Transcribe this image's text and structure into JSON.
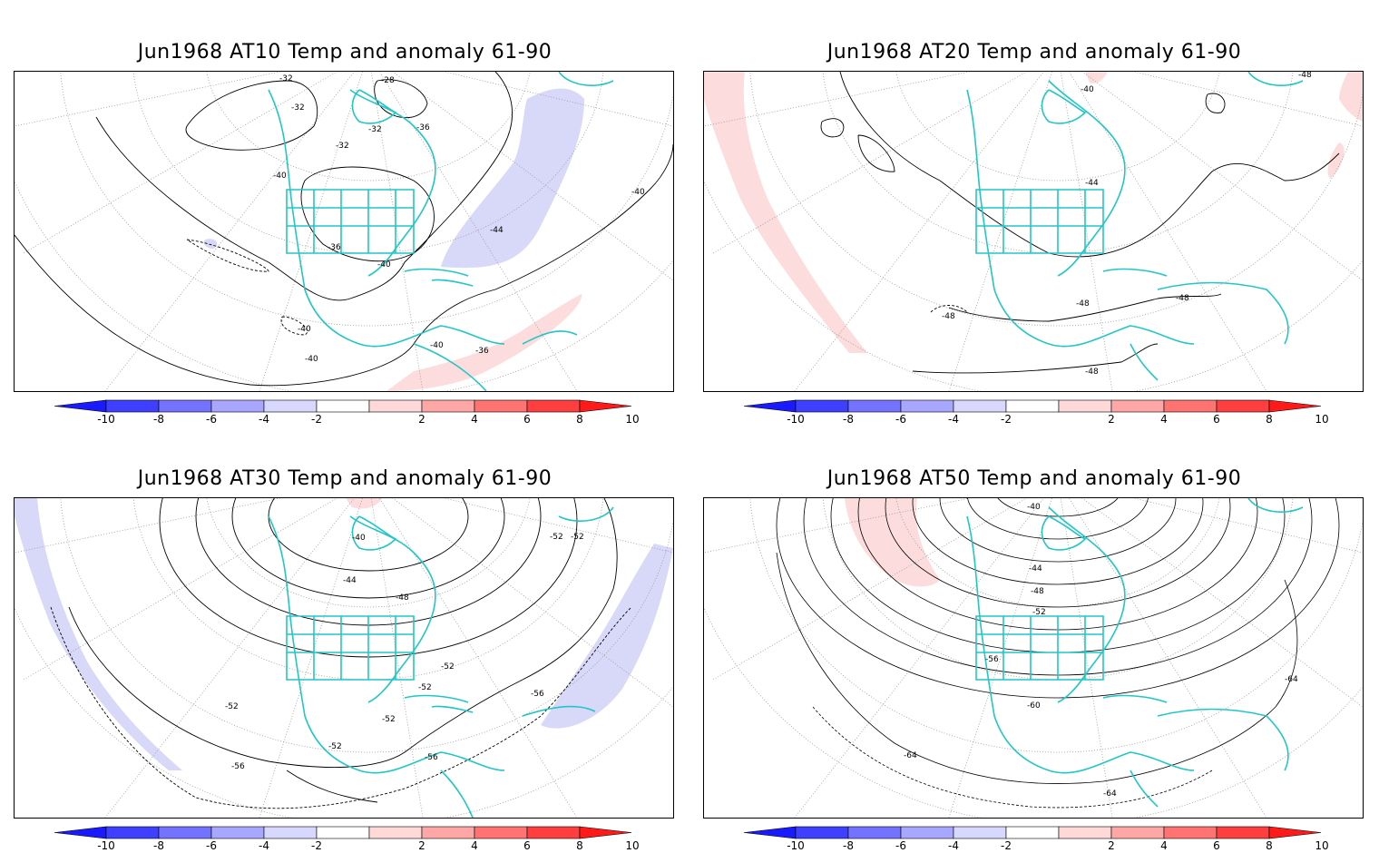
{
  "panels": [
    {
      "title": "Jun1968 AT10 Temp and anomaly 61-90",
      "contour_labels": [
        "-28",
        "-32",
        "-32",
        "-32",
        "-32",
        "-36",
        "-36",
        "-40",
        "-40",
        "-40",
        "-40",
        "-40",
        "-44",
        "-36",
        "-40"
      ],
      "anomaly_regions": [
        {
          "sign": "negative",
          "level": "-2"
        },
        {
          "sign": "positive",
          "level": "2"
        }
      ]
    },
    {
      "title": "Jun1968 AT20 Temp and anomaly 61-90",
      "contour_labels": [
        "-40",
        "-44",
        "-48",
        "-48",
        "-48",
        "-48",
        "-48"
      ],
      "anomaly_regions": [
        {
          "sign": "positive",
          "level": "2"
        }
      ]
    },
    {
      "title": "Jun1968 AT30 Temp and anomaly 61-90",
      "contour_labels": [
        "-40",
        "-44",
        "-48",
        "-52",
        "-52",
        "-52",
        "-52",
        "-52",
        "-52",
        "-56",
        "-56",
        "-56",
        "-52"
      ],
      "anomaly_regions": [
        {
          "sign": "negative",
          "level": "-2"
        },
        {
          "sign": "positive",
          "level": "2"
        }
      ]
    },
    {
      "title": "Jun1968 AT50 Temp and anomaly 61-90",
      "contour_labels": [
        "-40",
        "-44",
        "-48",
        "-52",
        "-56",
        "-60",
        "-64",
        "-64",
        "-64"
      ],
      "anomaly_regions": [
        {
          "sign": "positive",
          "level": "2"
        }
      ]
    }
  ],
  "colorbar": {
    "ticks": [
      "-10",
      "-8",
      "-6",
      "-4",
      "-2",
      "2",
      "4",
      "6",
      "8",
      "10"
    ],
    "colors": [
      "#1a1aff",
      "#3f3fff",
      "#7373ff",
      "#a7a7ff",
      "#d8d8ff",
      "#ffffff",
      "#ffd8d8",
      "#ffa7a7",
      "#ff7373",
      "#ff3f3f",
      "#ff1a1a"
    ]
  },
  "colors": {
    "coastline": "#22c6c6",
    "negative_fill": "#d8d8f8",
    "positive_fill": "#fcdcdc",
    "contour": "#000000",
    "grid": "#9a9a9a"
  }
}
